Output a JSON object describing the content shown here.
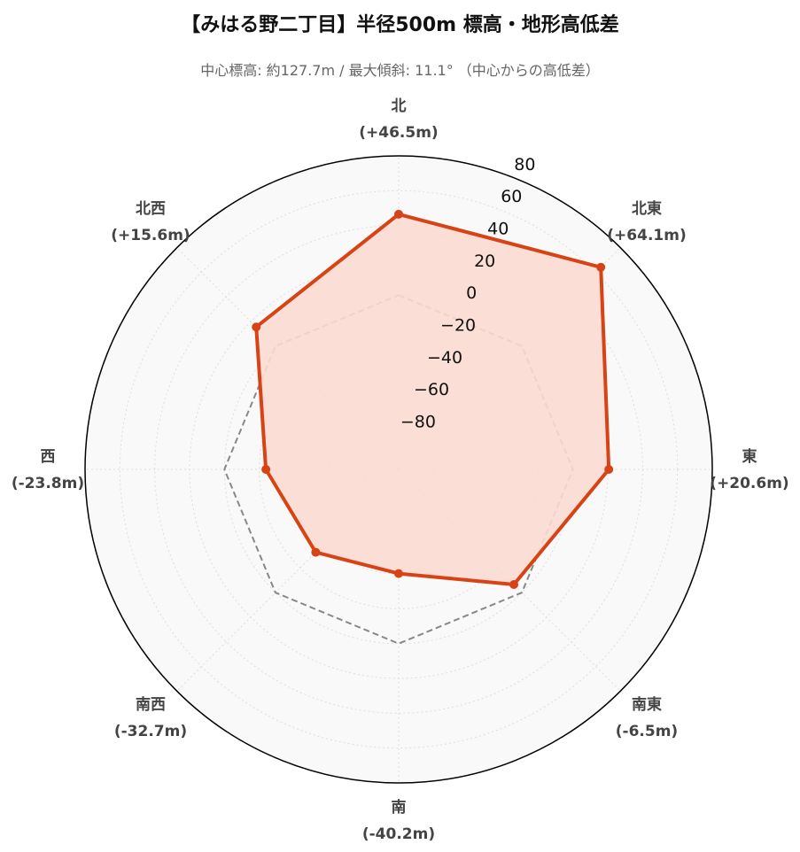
{
  "chart_data": {
    "type": "radar",
    "title": "【みはる野二丁目】半径500m 標高・地形高低差",
    "subtitle": "中心標高: 約127.7m / 最大傾斜: 11.1° （中心からの高低差）",
    "rlim": [
      -100,
      80
    ],
    "r_ticks": [
      80,
      60,
      40,
      20,
      0,
      -20,
      -40,
      -60,
      -80
    ],
    "r_tick_labels": [
      "80",
      "60",
      "40",
      "20",
      "0",
      "−20",
      "−40",
      "−60",
      "−80"
    ],
    "grid": true,
    "categories": [
      {
        "name": "北",
        "value_label": "(+46.5m)"
      },
      {
        "name": "北東",
        "value_label": "(+64.1m)"
      },
      {
        "name": "東",
        "value_label": "(+20.6m)"
      },
      {
        "name": "南東",
        "value_label": "(-6.5m)"
      },
      {
        "name": "南",
        "value_label": "(-40.2m)"
      },
      {
        "name": "南西",
        "value_label": "(-32.7m)"
      },
      {
        "name": "西",
        "value_label": "(-23.8m)"
      },
      {
        "name": "北西",
        "value_label": "(+15.6m)"
      }
    ],
    "series": [
      {
        "values": [
          46.5,
          64.1,
          20.6,
          -6.5,
          -40.2,
          -32.7,
          -23.8,
          15.6
        ],
        "color": "#d84315",
        "fill": "#fbdcd3",
        "style": "solid"
      },
      {
        "values": [
          0,
          0,
          0,
          0,
          0,
          0,
          0,
          0
        ],
        "color": "#888888",
        "style": "dashed"
      }
    ],
    "colors": {
      "background": "#f9f9f9",
      "grid": "#dddddd",
      "outline": "#000000"
    }
  }
}
